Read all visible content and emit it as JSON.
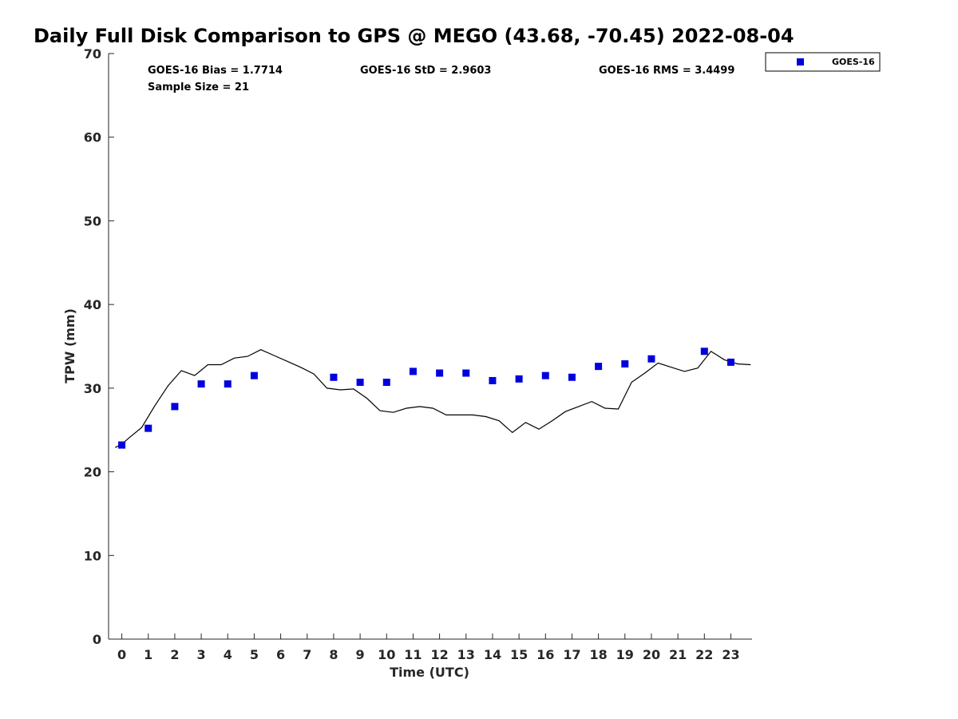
{
  "chart_data": {
    "type": "scatter",
    "title": "Daily Full Disk Comparison to GPS @ MEGO (43.68, -70.45) 2022-08-04",
    "xlabel": "Time (UTC)",
    "ylabel": "TPW (mm)",
    "xlim": [
      -0.5,
      23.8
    ],
    "ylim": [
      0,
      70
    ],
    "xticks": [
      0,
      1,
      2,
      3,
      4,
      5,
      6,
      7,
      8,
      9,
      10,
      11,
      12,
      13,
      14,
      15,
      16,
      17,
      18,
      19,
      20,
      21,
      22,
      23
    ],
    "yticks": [
      0,
      10,
      20,
      30,
      40,
      50,
      60,
      70
    ],
    "grid": false,
    "legend_position": "outside-top-right",
    "stats": {
      "bias": "GOES-16 Bias = 1.7714",
      "std": "GOES-16 StD = 2.9603",
      "rms": "GOES-16 RMS = 3.4499",
      "sample": "Sample Size = 21"
    },
    "series": [
      {
        "name": "GOES-16",
        "kind": "markers",
        "color": "#0000dd",
        "x": [
          0,
          1,
          2,
          3,
          4,
          5,
          8,
          9,
          10,
          11,
          12,
          13,
          14,
          15,
          16,
          17,
          18,
          19,
          20,
          22,
          23
        ],
        "y": [
          23.2,
          25.2,
          27.8,
          30.5,
          30.5,
          31.5,
          31.3,
          30.7,
          30.7,
          32.0,
          31.8,
          31.8,
          30.9,
          31.1,
          31.5,
          31.3,
          32.6,
          32.9,
          33.5,
          34.4,
          33.1
        ]
      },
      {
        "kind": "line",
        "color": "#000000",
        "x": [
          -0.25,
          0,
          0.25,
          0.75,
          1.25,
          1.75,
          2.25,
          2.75,
          3.25,
          3.75,
          4.25,
          4.75,
          5.25,
          5.75,
          6.25,
          6.75,
          7.25,
          7.75,
          8.25,
          8.75,
          9.25,
          9.75,
          10.25,
          10.75,
          11.25,
          11.75,
          12.25,
          12.75,
          13.25,
          13.75,
          14.25,
          14.75,
          15.25,
          15.75,
          16.25,
          16.75,
          17.25,
          17.75,
          18.25,
          18.75,
          19.25,
          19.75,
          20.25,
          20.75,
          21.25,
          21.75,
          22.25,
          22.75,
          23.25,
          23.75
        ],
        "y": [
          22.9,
          23.3,
          24.0,
          25.3,
          27.9,
          30.3,
          32.1,
          31.5,
          32.8,
          32.8,
          33.6,
          33.8,
          34.6,
          33.9,
          33.2,
          32.5,
          31.7,
          30.0,
          29.8,
          29.9,
          28.8,
          27.3,
          27.1,
          27.6,
          27.8,
          27.6,
          26.8,
          26.8,
          26.8,
          26.6,
          26.1,
          24.7,
          25.9,
          25.1,
          26.1,
          27.2,
          27.8,
          28.4,
          27.6,
          27.5,
          30.7,
          31.8,
          33.0,
          32.5,
          32.0,
          32.4,
          34.4,
          33.4,
          32.9,
          32.8
        ]
      }
    ]
  }
}
